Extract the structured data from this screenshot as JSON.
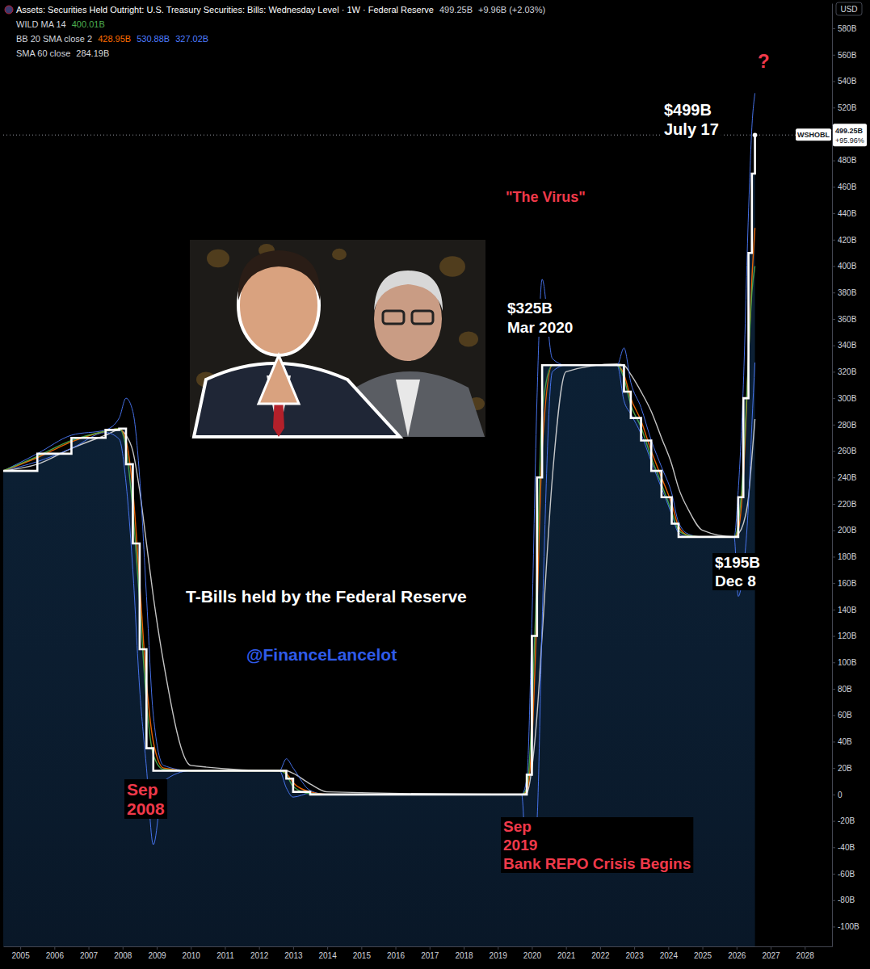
{
  "chart_data": {
    "type": "line",
    "title": "Assets: Securities Held Outright: U.S. Treasury Securities: Bills: Wednesday Level · 1W · Federal Reserve",
    "change_label": "+9.96B (+2.03%)",
    "currency_label": "USD",
    "x": [
      2004.5,
      2005.5,
      2006.5,
      2007.5,
      2007.9,
      2008.1,
      2008.3,
      2008.5,
      2008.7,
      2008.9,
      2009.2,
      2010.0,
      2012.6,
      2012.8,
      2013.0,
      2013.5,
      2014.0,
      2019.7,
      2019.85,
      2020.0,
      2020.15,
      2020.3,
      2020.6,
      2021.0,
      2022.5,
      2022.7,
      2022.9,
      2023.2,
      2023.5,
      2023.8,
      2024.1,
      2024.3,
      2024.6,
      2025.0,
      2025.93,
      2026.05,
      2026.2,
      2026.35,
      2026.45,
      2026.54
    ],
    "xlim": [
      2004.5,
      2028.8
    ],
    "xticks": [
      2005,
      2006,
      2007,
      2008,
      2009,
      2010,
      2011,
      2012,
      2013,
      2014,
      2015,
      2016,
      2017,
      2018,
      2019,
      2020,
      2021,
      2022,
      2023,
      2024,
      2025,
      2026,
      2027,
      2028
    ],
    "ylim": [
      -115,
      599
    ],
    "yticks": [
      {
        "value": -100,
        "label": "-100B"
      },
      {
        "value": -80,
        "label": "-80B"
      },
      {
        "value": -60,
        "label": "-60B"
      },
      {
        "value": -40,
        "label": "-40B"
      },
      {
        "value": -20,
        "label": "-20B"
      },
      0,
      {
        "value": 20,
        "label": "20B"
      },
      {
        "value": 40,
        "label": "40B"
      },
      {
        "value": 60,
        "label": "60B"
      },
      {
        "value": 80,
        "label": "80B"
      },
      {
        "value": 100,
        "label": "100B"
      },
      {
        "value": 120,
        "label": "120B"
      },
      {
        "value": 140,
        "label": "140B"
      },
      {
        "value": 160,
        "label": "160B"
      },
      {
        "value": 180,
        "label": "180B"
      },
      {
        "value": 200,
        "label": "200B"
      },
      {
        "value": 220,
        "label": "220B"
      },
      {
        "value": 240,
        "label": "240B"
      },
      {
        "value": 260,
        "label": "260B"
      },
      {
        "value": 280,
        "label": "280B"
      },
      {
        "value": 300,
        "label": "300B"
      },
      {
        "value": 320,
        "label": "320B"
      },
      {
        "value": 340,
        "label": "340B"
      },
      {
        "value": 360,
        "label": "360B"
      },
      {
        "value": 380,
        "label": "380B"
      },
      {
        "value": 400,
        "label": "400B"
      },
      {
        "value": 420,
        "label": "420B"
      },
      {
        "value": 440,
        "label": "440B"
      },
      {
        "value": 460,
        "label": "460B"
      },
      {
        "value": 480,
        "label": "480B"
      },
      {
        "value": 520,
        "label": "520B"
      },
      {
        "value": 540,
        "label": "540B"
      },
      {
        "value": 560,
        "label": "560B"
      },
      {
        "value": 580,
        "label": "580B"
      }
    ],
    "grid": false,
    "series": [
      {
        "name": "WSHOBL",
        "type": "area",
        "line_style": "step",
        "color": "#ffffff",
        "last_label": "499.25B",
        "change_label": "+95.96%",
        "values": [
          245,
          258,
          270,
          276,
          277,
          250,
          190,
          110,
          35,
          18,
          18,
          18,
          18,
          12,
          2,
          0,
          0,
          0,
          15,
          120,
          240,
          325,
          325,
          325,
          325,
          305,
          285,
          268,
          245,
          225,
          205,
          195,
          195,
          195,
          195,
          225,
          300,
          410,
          470,
          499.25
        ]
      },
      {
        "name": "WILD MA 14",
        "color": "#4caf50",
        "last_label": "400.01B",
        "values": [
          245,
          256,
          268,
          275,
          277,
          262,
          215,
          145,
          70,
          30,
          19,
          18,
          18,
          15,
          6,
          0.5,
          0,
          0,
          5,
          60,
          170,
          290,
          325,
          325,
          325,
          315,
          295,
          278,
          255,
          235,
          214,
          200,
          196,
          195,
          195,
          205,
          250,
          330,
          380,
          400.01
        ]
      },
      {
        "name": "BB 20 SMA close 2",
        "color": "#ff6d00",
        "last_label": "428.95B",
        "values": [
          245,
          255,
          267,
          275,
          277,
          268,
          230,
          160,
          85,
          40,
          20,
          18,
          18,
          16,
          9,
          2,
          0,
          0,
          3,
          40,
          140,
          260,
          325,
          325,
          325,
          318,
          300,
          283,
          260,
          240,
          220,
          203,
          196,
          195,
          195,
          200,
          240,
          330,
          390,
          428.95
        ]
      },
      {
        "name": null,
        "color": "#4d7cff",
        "last_label": "530.88B",
        "values": [
          245,
          258,
          272,
          276,
          285,
          300,
          290,
          240,
          150,
          60,
          22,
          18,
          18,
          27,
          20,
          3,
          0,
          0,
          12,
          130,
          300,
          390,
          330,
          325,
          325,
          338,
          312,
          293,
          268,
          248,
          228,
          206,
          197,
          195,
          195,
          230,
          310,
          440,
          505,
          530.88
        ]
      },
      {
        "name": null,
        "color": "#4d7cff",
        "last_label": "327.02B",
        "values": [
          245,
          252,
          262,
          274,
          269,
          236,
          170,
          80,
          20,
          -38,
          10,
          18,
          18,
          5,
          -2,
          1,
          0,
          0,
          -55,
          -50,
          -20,
          130,
          320,
          325,
          325,
          298,
          288,
          273,
          252,
          232,
          212,
          198,
          195,
          195,
          195,
          150,
          170,
          220,
          280,
          327.02
        ]
      },
      {
        "name": "SMA 60 close",
        "color": "#d9d9d9",
        "last_label": "284.19B",
        "values": [
          245,
          250,
          262,
          272,
          276,
          272,
          260,
          230,
          190,
          150,
          100,
          22,
          18,
          18,
          16,
          8,
          2,
          0,
          1,
          20,
          60,
          120,
          240,
          320,
          326,
          325,
          318,
          305,
          290,
          270,
          250,
          232,
          215,
          200,
          195,
          197,
          205,
          225,
          255,
          284.19
        ]
      }
    ],
    "annotations": [
      [
        "$499B",
        "July 17"
      ],
      [
        "?"
      ],
      [
        "\"The Virus\""
      ],
      [
        "$325B",
        "Mar 2020"
      ],
      [
        "$195B",
        "Dec 8"
      ],
      [
        "T-Bills held by the Federal Reserve"
      ],
      [
        "@FinanceLancelot"
      ],
      [
        "Sep",
        "2008"
      ],
      [
        "Sep",
        "2019",
        "Bank REPO Crisis Begins"
      ]
    ]
  }
}
